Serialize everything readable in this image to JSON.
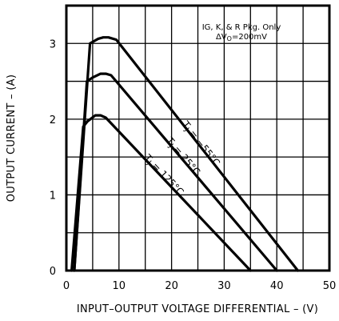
{
  "chart_data": {
    "type": "line",
    "title": "",
    "xlabel": "INPUT–OUTPUT VOLTAGE DIFFERENTIAL – (V)",
    "ylabel": "OUTPUT CURRENT – (A)",
    "xlim": [
      0,
      50
    ],
    "ylim": [
      0,
      3.5
    ],
    "xticks": [
      0,
      10,
      20,
      30,
      40,
      50
    ],
    "yticks": [
      0,
      1,
      2,
      3
    ],
    "grid": true,
    "annotation": {
      "line1": "IG, K, & R Pkg. Only",
      "line2": "ΔV",
      "line2_sub": "O",
      "line2_tail": "=200mV"
    },
    "series": [
      {
        "name": "TJ = −55°C",
        "label_parts": {
          "pre": "T",
          "sub": "J",
          "post": " = −55°C"
        },
        "x": [
          1.5,
          4.5,
          6,
          7,
          8,
          9.5,
          44
        ],
        "y": [
          0,
          3.0,
          3.06,
          3.08,
          3.08,
          3.05,
          0
        ]
      },
      {
        "name": "TJ = 25°C",
        "label_parts": {
          "pre": "T",
          "sub": "J",
          "post": " = 25°C"
        },
        "x": [
          1.5,
          3.9,
          5,
          6.5,
          7.5,
          8.5,
          40
        ],
        "y": [
          0,
          2.5,
          2.55,
          2.6,
          2.6,
          2.58,
          0
        ]
      },
      {
        "name": "TJ = 125°C",
        "label_parts": {
          "pre": "T",
          "sub": "J",
          "post": " = 125°C"
        },
        "x": [
          1.0,
          3.2,
          4,
          5.5,
          6.5,
          7.5,
          35
        ],
        "y": [
          0,
          1.9,
          1.97,
          2.05,
          2.05,
          2.02,
          0
        ]
      }
    ]
  }
}
